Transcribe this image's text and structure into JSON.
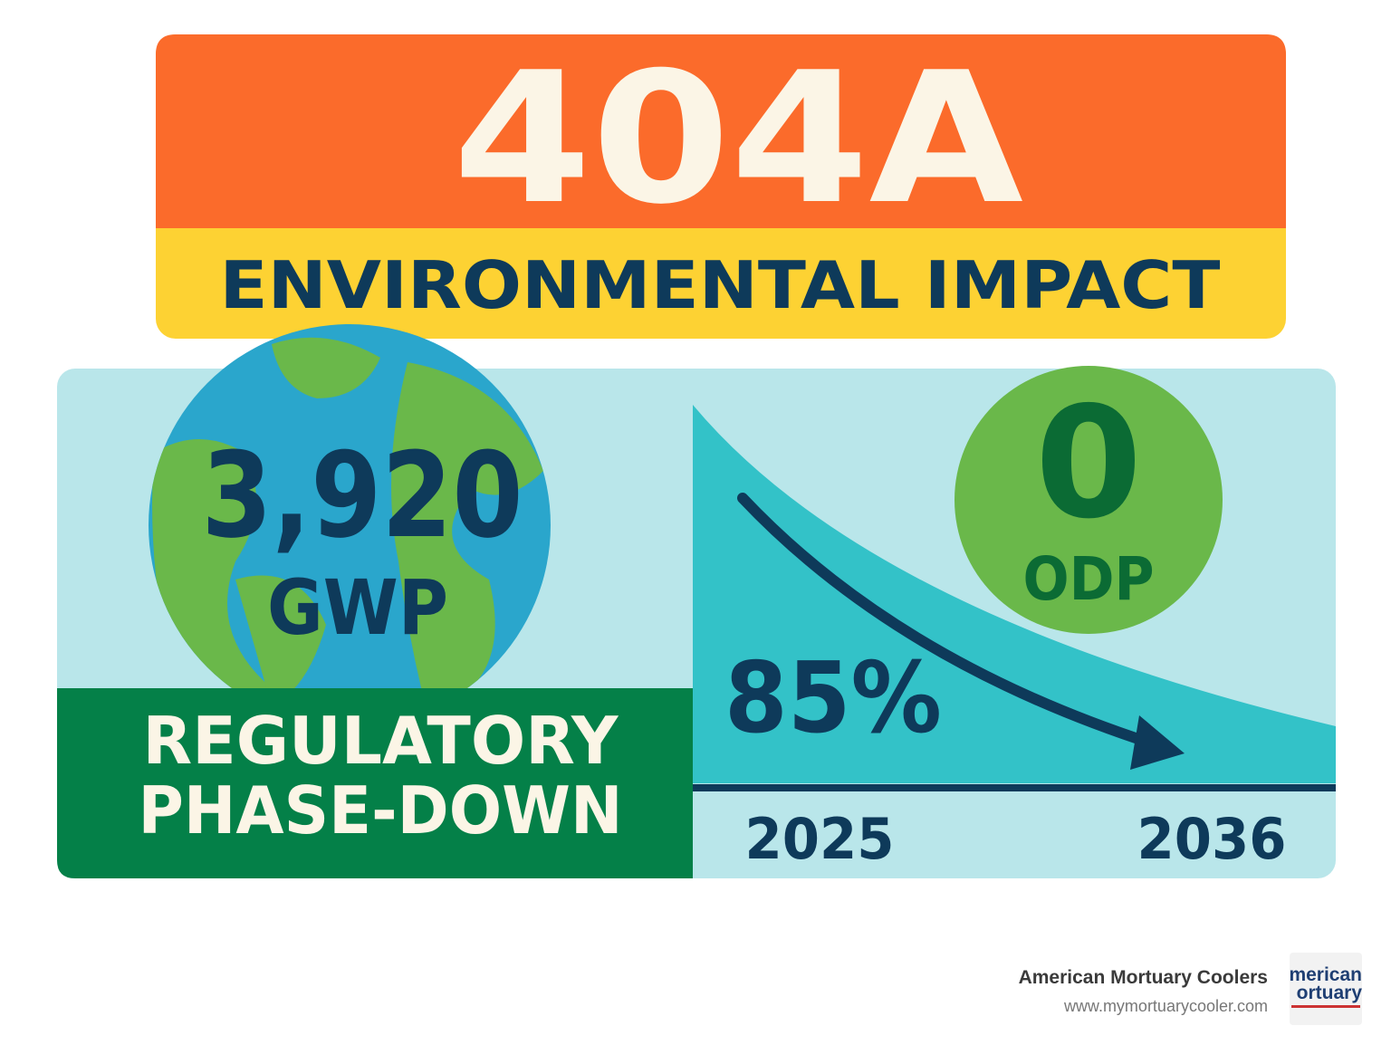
{
  "header": {
    "title": "404A",
    "subtitle": "ENVIRONMENTAL IMPACT"
  },
  "gwp": {
    "value": "3,920",
    "label": "GWP"
  },
  "odp": {
    "value": "0",
    "label": "ODP"
  },
  "phase_down": {
    "label_lines": [
      "REGULATORY",
      "PHASE-DOWN"
    ],
    "percent": "85%",
    "start_year": "2025",
    "end_year": "2036"
  },
  "footer": {
    "company": "American Mortuary Coolers",
    "url": "www.mymortuarycooler.com",
    "logo_lines": [
      "merican",
      "ortuary"
    ]
  }
}
